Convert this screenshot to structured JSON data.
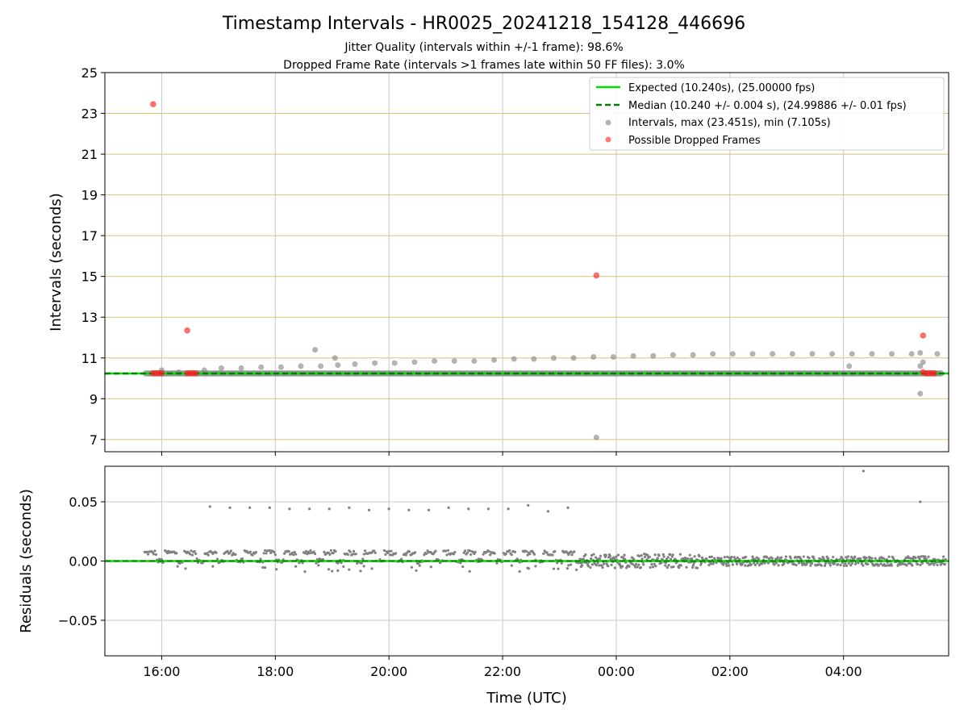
{
  "figure": {
    "title": "Timestamp Intervals - HR0025_20241218_154128_446696",
    "subtitle1": "Jitter Quality (intervals within +/-1 frame): 98.6%",
    "subtitle2": "Dropped Frame Rate (intervals >1 frames late within 50 FF files): 3.0%",
    "xlabel": "Time (UTC)"
  },
  "colors": {
    "expected": "#00e000",
    "median": "#007f00",
    "intervals": "#808080",
    "dropped": "#ff2020",
    "hgrid_top": "#d9c27a",
    "grid": "#c8c8c8"
  },
  "chart_data": [
    {
      "type": "scatter",
      "name": "intervals-panel",
      "ylabel": "Intervals (seconds)",
      "x_unit": "hours since 15:00 UTC",
      "xlim": [
        0,
        14.85
      ],
      "ylim": [
        6.4,
        25
      ],
      "yticks": [
        7,
        9,
        11,
        13,
        15,
        17,
        19,
        21,
        23,
        25
      ],
      "xticks": [
        1,
        3,
        5,
        7,
        9,
        11,
        13
      ],
      "xtick_labels": [
        "16:00",
        "18:00",
        "20:00",
        "22:00",
        "00:00",
        "02:00",
        "04:00"
      ],
      "legend": {
        "placement": "top-right",
        "expected": "Expected (10.240s), (25.00000 fps)",
        "median": "Median (10.240 +/- 0.004 s), (24.99886 +/- 0.01 fps)",
        "intervals": "Intervals, max (23.451s), min (7.105s)",
        "dropped": "Possible Dropped Frames"
      },
      "expected_value": 10.24,
      "median_value": 10.24,
      "baseline_range": [
        0.72,
        14.75
      ],
      "intervals_outliers": [
        [
          1.0,
          10.4
        ],
        [
          1.3,
          10.3
        ],
        [
          1.75,
          10.4
        ],
        [
          2.05,
          10.5
        ],
        [
          2.4,
          10.5
        ],
        [
          2.75,
          10.55
        ],
        [
          3.1,
          10.55
        ],
        [
          3.45,
          10.6
        ],
        [
          3.7,
          11.4
        ],
        [
          3.8,
          10.6
        ],
        [
          4.1,
          10.65
        ],
        [
          4.05,
          11.0
        ],
        [
          4.4,
          10.7
        ],
        [
          4.75,
          10.75
        ],
        [
          5.1,
          10.75
        ],
        [
          5.45,
          10.8
        ],
        [
          5.8,
          10.85
        ],
        [
          6.15,
          10.85
        ],
        [
          6.5,
          10.85
        ],
        [
          6.85,
          10.9
        ],
        [
          7.2,
          10.95
        ],
        [
          7.55,
          10.95
        ],
        [
          7.9,
          11.0
        ],
        [
          8.25,
          11.0
        ],
        [
          8.6,
          11.05
        ],
        [
          8.95,
          11.05
        ],
        [
          9.3,
          11.1
        ],
        [
          9.65,
          11.1
        ],
        [
          10.0,
          11.15
        ],
        [
          10.35,
          11.15
        ],
        [
          10.7,
          11.2
        ],
        [
          11.05,
          11.2
        ],
        [
          11.4,
          11.2
        ],
        [
          11.75,
          11.2
        ],
        [
          12.1,
          11.2
        ],
        [
          12.45,
          11.2
        ],
        [
          12.8,
          11.2
        ],
        [
          13.1,
          10.6
        ],
        [
          13.15,
          11.2
        ],
        [
          13.5,
          11.2
        ],
        [
          13.85,
          11.2
        ],
        [
          14.2,
          11.2
        ],
        [
          14.35,
          11.25
        ],
        [
          14.4,
          10.8
        ],
        [
          14.35,
          10.6
        ],
        [
          14.35,
          9.25
        ],
        [
          14.65,
          11.2
        ],
        [
          8.65,
          7.1
        ]
      ],
      "dropped_frames": [
        [
          0.85,
          23.45
        ],
        [
          1.45,
          12.35
        ],
        [
          8.65,
          15.05
        ],
        [
          14.4,
          12.1
        ],
        [
          0.85,
          10.25
        ],
        [
          0.9,
          10.25
        ],
        [
          0.95,
          10.25
        ],
        [
          1.0,
          10.25
        ],
        [
          1.45,
          10.25
        ],
        [
          1.5,
          10.25
        ],
        [
          1.55,
          10.25
        ],
        [
          1.6,
          10.25
        ],
        [
          14.4,
          10.3
        ],
        [
          14.45,
          10.25
        ],
        [
          14.5,
          10.25
        ],
        [
          14.55,
          10.25
        ],
        [
          14.6,
          10.25
        ]
      ]
    },
    {
      "type": "scatter",
      "name": "residuals-panel",
      "ylabel": "Residuals (seconds)",
      "x_unit": "hours since 15:00 UTC",
      "xlim": [
        0,
        14.85
      ],
      "ylim": [
        -0.08,
        0.08
      ],
      "yticks": [
        -0.05,
        0.0,
        0.05
      ],
      "ytick_labels": [
        "−0.05",
        "0.00",
        "0.05"
      ],
      "residual_outliers": [
        [
          1.85,
          0.046
        ],
        [
          2.2,
          0.045
        ],
        [
          2.55,
          0.045
        ],
        [
          2.9,
          0.045
        ],
        [
          3.25,
          0.044
        ],
        [
          3.6,
          0.044
        ],
        [
          3.95,
          0.044
        ],
        [
          4.3,
          0.045
        ],
        [
          4.65,
          0.043
        ],
        [
          5.0,
          0.044
        ],
        [
          5.35,
          0.043
        ],
        [
          5.7,
          0.043
        ],
        [
          6.05,
          0.045
        ],
        [
          6.4,
          0.044
        ],
        [
          6.75,
          0.044
        ],
        [
          7.1,
          0.044
        ],
        [
          7.45,
          0.047
        ],
        [
          7.8,
          0.042
        ],
        [
          8.15,
          0.045
        ],
        [
          13.35,
          0.076
        ],
        [
          14.35,
          0.05
        ]
      ]
    }
  ]
}
